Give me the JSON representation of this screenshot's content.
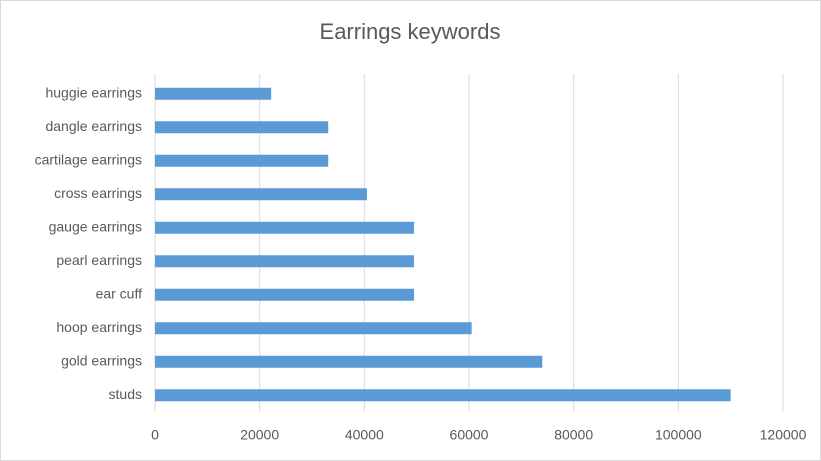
{
  "chart_data": {
    "type": "bar",
    "orientation": "horizontal",
    "title": "Earrings keywords",
    "categories": [
      "huggie earrings",
      "dangle earrings",
      "cartilage earrings",
      "cross earrings",
      "gauge earrings",
      "pearl earrings",
      "ear cuff",
      "hoop earrings",
      "gold earrings",
      "studs"
    ],
    "values": [
      22200,
      33100,
      33100,
      40500,
      49500,
      49500,
      49500,
      60500,
      74000,
      110000
    ],
    "color": "#5b9bd5",
    "xlim": [
      0,
      120000
    ],
    "xticks": [
      0,
      20000,
      40000,
      60000,
      80000,
      100000,
      120000
    ],
    "grid": true
  }
}
